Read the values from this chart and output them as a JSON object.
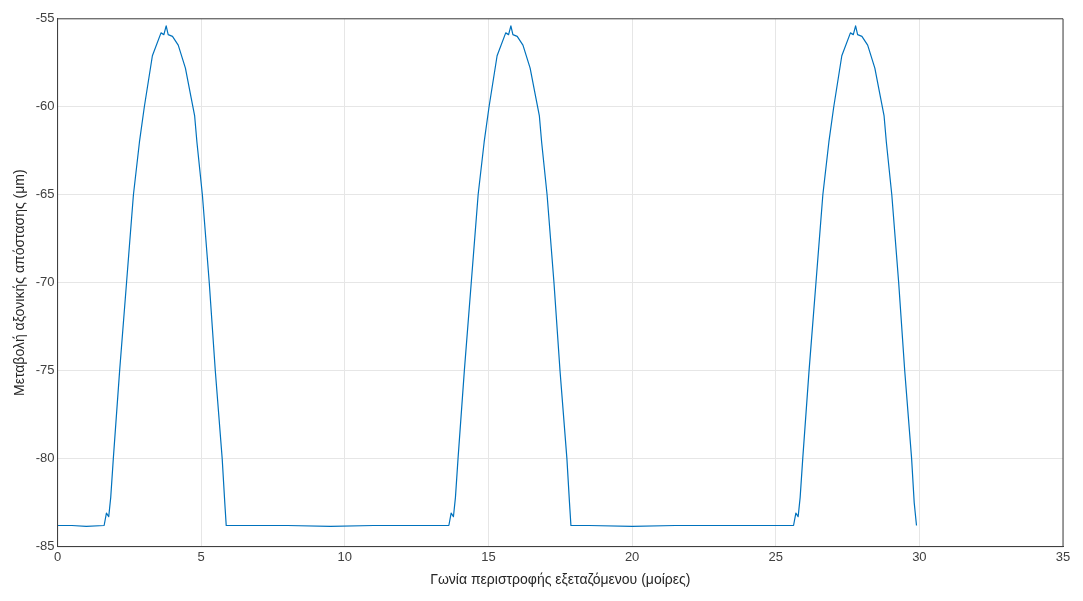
{
  "chart_data": {
    "type": "line",
    "xlabel": "Γωνία περιστροφής εξεταζόμενου (μοίρες)",
    "ylabel": "Μεταβολή αξονικής απόστασης (μm)",
    "xlim": [
      0,
      35
    ],
    "xticks": [
      0,
      5,
      10,
      15,
      20,
      25,
      30,
      35
    ],
    "ylim": [
      -85,
      -55
    ],
    "yticks": [
      -85,
      -80,
      -75,
      -70,
      -65,
      -60,
      -55
    ],
    "grid": true,
    "marker": "none",
    "line_style": "solid",
    "series": [
      {
        "color": "#0072bd",
        "x": [
          0,
          0.5,
          1.0,
          1.62,
          1.7,
          1.78,
          1.85,
          1.94,
          2.16,
          2.4,
          2.64,
          2.85,
          3.02,
          3.3,
          3.6,
          3.7,
          3.78,
          3.85,
          4.0,
          4.2,
          4.45,
          4.65,
          4.77,
          4.85,
          5.04,
          5.28,
          5.49,
          5.73,
          5.82,
          5.87,
          6.5,
          8,
          9.5,
          11,
          12.5,
          13.62,
          13.7,
          13.78,
          13.85,
          13.94,
          14.16,
          14.4,
          14.64,
          14.85,
          15.02,
          15.3,
          15.6,
          15.7,
          15.78,
          15.85,
          16.0,
          16.2,
          16.45,
          16.65,
          16.77,
          16.85,
          17.04,
          17.28,
          17.49,
          17.73,
          17.82,
          17.87,
          18.5,
          20,
          21.5,
          23,
          24.5,
          25.62,
          25.7,
          25.78,
          25.85,
          25.94,
          26.16,
          26.4,
          26.64,
          26.85,
          27.02,
          27.3,
          27.6,
          27.7,
          27.78,
          27.85,
          28.0,
          28.2,
          28.45,
          28.65,
          28.77,
          28.85,
          29.04,
          29.28,
          29.49,
          29.73,
          29.82,
          29.9
        ],
        "values": [
          -83.8,
          -83.8,
          -83.85,
          -83.8,
          -83.1,
          -83.3,
          -82.2,
          -80,
          -75,
          -70,
          -65,
          -62,
          -60,
          -57.1,
          -55.8,
          -55.9,
          -55.4,
          -55.9,
          -56,
          -56.5,
          -57.8,
          -59.5,
          -60.5,
          -62,
          -65,
          -70,
          -75,
          -80,
          -82.5,
          -83.8,
          -83.8,
          -83.8,
          -83.85,
          -83.8,
          -83.8,
          -83.8,
          -83.1,
          -83.3,
          -82.2,
          -80,
          -75,
          -70,
          -65,
          -62,
          -60,
          -57.1,
          -55.8,
          -55.9,
          -55.4,
          -55.9,
          -56,
          -56.5,
          -57.8,
          -59.5,
          -60.5,
          -62,
          -65,
          -70,
          -75,
          -80,
          -82.5,
          -83.8,
          -83.8,
          -83.85,
          -83.8,
          -83.8,
          -83.8,
          -83.8,
          -83.1,
          -83.3,
          -82.2,
          -80,
          -75,
          -70,
          -65,
          -62,
          -60,
          -57.1,
          -55.8,
          -55.9,
          -55.4,
          -55.9,
          -56,
          -56.5,
          -57.8,
          -59.5,
          -60.5,
          -62,
          -65,
          -70,
          -75,
          -80,
          -82.5,
          -83.8
        ]
      }
    ]
  }
}
